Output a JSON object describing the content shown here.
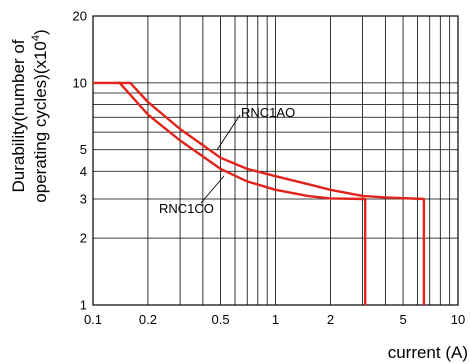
{
  "chart_data": {
    "type": "line",
    "x_scale": "log",
    "y_scale": "log",
    "xlim": [
      0.1,
      10
    ],
    "ylim": [
      1,
      20
    ],
    "grid": true,
    "xlabel": "current (A)",
    "ylabel_line1": "Durability(number of",
    "ylabel_line2_prefix": "operating cycles)(x10",
    "ylabel_superscript": "4",
    "ylabel_line2_suffix": ")",
    "x_ticks": [
      {
        "value": 0.1,
        "label": "0.1"
      },
      {
        "value": 0.2,
        "label": "0.2"
      },
      {
        "value": 0.5,
        "label": "0.5"
      },
      {
        "value": 1,
        "label": "1"
      },
      {
        "value": 2,
        "label": "2"
      },
      {
        "value": 5,
        "label": "5"
      },
      {
        "value": 10,
        "label": "10"
      }
    ],
    "y_ticks": [
      {
        "value": 1,
        "label": "1"
      },
      {
        "value": 2,
        "label": "2"
      },
      {
        "value": 3,
        "label": "3"
      },
      {
        "value": 4,
        "label": "4"
      },
      {
        "value": 5,
        "label": "5"
      },
      {
        "value": 10,
        "label": "10"
      },
      {
        "value": 20,
        "label": "20"
      }
    ],
    "series_color": "#e0231b",
    "series": [
      {
        "name": "RNC1AO",
        "points": [
          [
            0.13,
            10
          ],
          [
            0.16,
            10
          ],
          [
            0.2,
            8.2
          ],
          [
            0.3,
            6.2
          ],
          [
            0.5,
            4.6
          ],
          [
            0.7,
            4.1
          ],
          [
            1,
            3.8
          ],
          [
            1.5,
            3.5
          ],
          [
            2,
            3.3
          ],
          [
            3,
            3.1
          ],
          [
            4,
            3.05
          ],
          [
            6.5,
            3
          ],
          [
            6.5,
            1
          ]
        ]
      },
      {
        "name": "RNC1CO",
        "points": [
          [
            0.1,
            10
          ],
          [
            0.14,
            10
          ],
          [
            0.2,
            7.2
          ],
          [
            0.3,
            5.5
          ],
          [
            0.5,
            4.1
          ],
          [
            0.7,
            3.6
          ],
          [
            1,
            3.3
          ],
          [
            1.5,
            3.1
          ],
          [
            2,
            3.02
          ],
          [
            3.1,
            3
          ],
          [
            3.1,
            1
          ]
        ]
      }
    ]
  }
}
